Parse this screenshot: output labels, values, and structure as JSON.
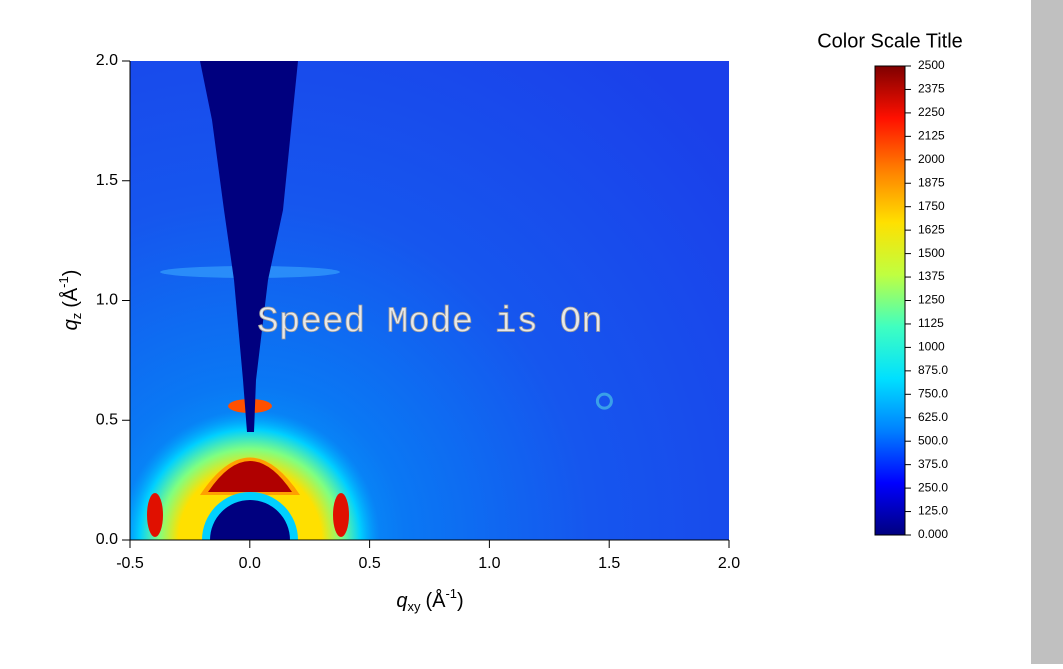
{
  "chart_data": {
    "type": "heatmap",
    "x_label": {
      "symbol": "q",
      "subscript": "xy",
      "unit": "(Å",
      "superscript": "-1",
      "close": ")"
    },
    "y_label": {
      "symbol": "q",
      "subscript": "z",
      "unit": "(Å",
      "superscript": "-1",
      "close": ")"
    },
    "xlim": [
      -0.5,
      2.0
    ],
    "xticks": [
      -0.5,
      {
        "value": 0,
        "label": "0.0"
      },
      0.5,
      {
        "value": 1,
        "label": "1.0"
      },
      1.5,
      {
        "value": 2,
        "label": "2.0"
      }
    ],
    "ylim": [
      0,
      2.0
    ],
    "yticks": [
      {
        "value": 0,
        "label": "0.0"
      },
      0.5,
      {
        "value": 1,
        "label": "1.0"
      },
      1.5,
      {
        "value": 2,
        "label": "2.0"
      }
    ],
    "annotation": "Speed Mode is On",
    "marker": {
      "x": 1.48,
      "y": 0.58,
      "color": "#3aa0e8"
    },
    "color_scale": {
      "title": "Color Scale Title",
      "lim": [
        0,
        2500
      ],
      "colormap": [
        "#00007f",
        "#0000ff",
        "#0080ff",
        "#00e0ff",
        "#40ff c0",
        "#c0ff40",
        "#ffe000",
        "#ff8000",
        "#ff1000",
        "#7f0000"
      ],
      "ticks": [
        {
          "value": 0,
          "label": "0.000"
        },
        {
          "value": 125,
          "label": "125.0"
        },
        {
          "value": 250,
          "label": "250.0"
        },
        {
          "value": 375,
          "label": "375.0"
        },
        {
          "value": 500,
          "label": "500.0"
        },
        {
          "value": 625,
          "label": "625.0"
        },
        {
          "value": 750,
          "label": "750.0"
        },
        {
          "value": 875,
          "label": "875.0"
        },
        1000,
        1125,
        1250,
        1375,
        1500,
        1625,
        1750,
        1875,
        2000,
        2125,
        2250,
        2375,
        2500
      ]
    }
  }
}
